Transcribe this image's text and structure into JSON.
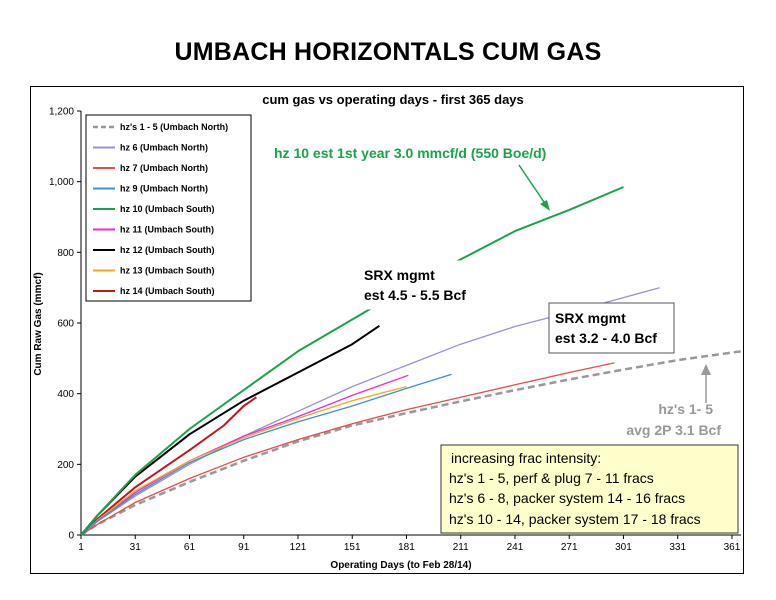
{
  "slide": {
    "title": "UMBACH HORIZONTALS CUM GAS"
  },
  "colors": {
    "hz1_5": "#999999",
    "hz6": "#9d8fd0",
    "hz7": "#e84c4c",
    "hz9": "#3e8fcf",
    "hz10": "#1aa34a",
    "hz11": "#e42bd8",
    "hz12": "#000000",
    "hz13": "#f5a623",
    "hz14": "#c0161c",
    "note_box": "#ffffcc"
  },
  "annotations": {
    "hz10_est": "hz 10 est 1st year 3.0 mmcf/d (550 Boe/d)",
    "srx_upper_line1": "SRX mgmt",
    "srx_upper_line2": "est 4.5 - 5.5 Bcf",
    "srx_lower_line1": "SRX mgmt",
    "srx_lower_line2": "est 3.2 - 4.0 Bcf",
    "hz1_5_line1": "hz's 1- 5",
    "hz1_5_line2": "avg 2P 3.1 Bcf",
    "note_title": "increasing frac intensity:",
    "note_line1": "hz's 1 - 5, perf & plug 7 - 11 fracs",
    "note_line2": "hz's 6 - 8, packer system 14 - 16 fracs",
    "note_line3": "hz's 10 - 14, packer system 17 - 18 fracs"
  },
  "chart_data": {
    "type": "line",
    "title": "cum gas vs operating days - first 365 days",
    "xlabel": "Operating Days (to Feb 28/14)",
    "ylabel": "Cum Raw Gas (mmcf)",
    "xlim": [
      1,
      366
    ],
    "ylim": [
      0,
      1200
    ],
    "x_ticks": [
      1,
      31,
      61,
      91,
      121,
      151,
      181,
      211,
      241,
      271,
      301,
      331,
      361
    ],
    "y_ticks": [
      0,
      200,
      400,
      600,
      800,
      1000,
      1200
    ],
    "y_tick_labels": [
      "0",
      "200",
      "400",
      "600",
      "800",
      "1,000",
      "1,200"
    ],
    "grid": false,
    "legend_position": "top-left",
    "series": [
      {
        "name": "hz's 1 - 5 (Umbach North)",
        "color_key": "hz1_5",
        "dashed": true,
        "x": [
          1,
          10,
          31,
          61,
          91,
          121,
          151,
          181,
          211,
          241,
          271,
          301,
          331,
          366
        ],
        "y": [
          0,
          30,
          85,
          150,
          210,
          265,
          310,
          345,
          378,
          410,
          440,
          468,
          495,
          520
        ]
      },
      {
        "name": "hz 6 (Umbach North)",
        "color_key": "hz6",
        "dashed": false,
        "x": [
          1,
          10,
          31,
          61,
          91,
          121,
          151,
          181,
          211,
          241,
          271,
          301,
          321
        ],
        "y": [
          0,
          38,
          110,
          200,
          280,
          350,
          420,
          480,
          540,
          590,
          630,
          672,
          700
        ]
      },
      {
        "name": "hz 7 (Umbach North)",
        "color_key": "hz7",
        "dashed": false,
        "x": [
          1,
          10,
          31,
          61,
          91,
          121,
          151,
          181,
          211,
          241,
          271,
          296
        ],
        "y": [
          0,
          30,
          92,
          160,
          220,
          270,
          315,
          355,
          390,
          425,
          460,
          487
        ]
      },
      {
        "name": "hz 9 (Umbach North)",
        "color_key": "hz9",
        "dashed": false,
        "x": [
          1,
          10,
          31,
          61,
          91,
          121,
          151,
          181,
          206
        ],
        "y": [
          0,
          40,
          115,
          205,
          270,
          320,
          365,
          415,
          455
        ]
      },
      {
        "name": "hz 10 (Umbach South)",
        "color_key": "hz10",
        "dashed": false,
        "x": [
          1,
          10,
          31,
          61,
          91,
          121,
          151,
          181,
          211,
          241,
          271,
          301
        ],
        "y": [
          0,
          55,
          170,
          300,
          410,
          520,
          610,
          700,
          780,
          860,
          920,
          985
        ]
      },
      {
        "name": "hz 11 (Umbach South)",
        "color_key": "hz11",
        "dashed": false,
        "x": [
          1,
          10,
          31,
          61,
          91,
          121,
          151,
          182
        ],
        "y": [
          0,
          40,
          120,
          210,
          280,
          335,
          395,
          452
        ]
      },
      {
        "name": "hz 12 (Umbach South)",
        "color_key": "hz12",
        "dashed": false,
        "x": [
          1,
          10,
          31,
          61,
          91,
          121,
          151,
          166
        ],
        "y": [
          0,
          55,
          165,
          285,
          380,
          460,
          540,
          592
        ]
      },
      {
        "name": "hz 13 (Umbach South)",
        "color_key": "hz13",
        "dashed": false,
        "x": [
          1,
          10,
          31,
          61,
          91,
          121,
          151,
          181
        ],
        "y": [
          0,
          42,
          125,
          210,
          275,
          330,
          380,
          420
        ]
      },
      {
        "name": "hz 14 (Umbach South)",
        "color_key": "hz14",
        "dashed": false,
        "x": [
          1,
          10,
          31,
          61,
          80,
          91,
          98
        ],
        "y": [
          0,
          45,
          135,
          240,
          310,
          365,
          390
        ]
      }
    ]
  }
}
